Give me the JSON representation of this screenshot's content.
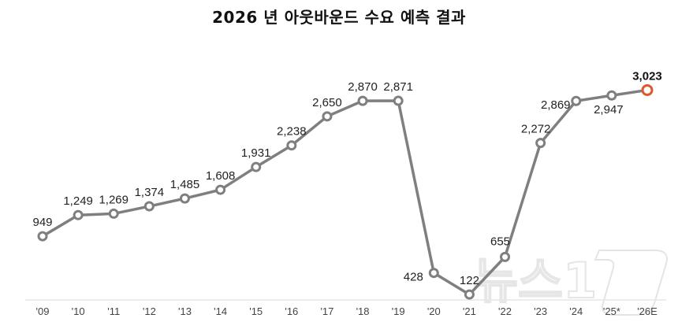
{
  "title": "2026 년 아웃바운드 수요 예측 결과",
  "watermark": "뉴스1",
  "colors": {
    "line": "#7f7f7f",
    "marker_fill": "#ffffff",
    "highlight": "#e0562e",
    "axis": "#e6e6e6",
    "text": "#222222"
  },
  "chart_data": {
    "type": "line",
    "title": "2026 년 아웃바운드 수요 예측 결과",
    "xlabel": "",
    "ylabel": "",
    "categories": [
      "'09",
      "'10",
      "'11",
      "'12",
      "'13",
      "'14",
      "'15",
      "'16",
      "'17",
      "'18",
      "'19",
      "'20",
      "'21",
      "'22",
      "'23",
      "'24",
      "'25*",
      "'26E"
    ],
    "series": [
      {
        "name": "아웃바운드 수요",
        "values": [
          949,
          1249,
          1269,
          1374,
          1485,
          1608,
          1931,
          2238,
          2650,
          2870,
          2871,
          428,
          122,
          655,
          2272,
          2869,
          2947,
          3023
        ]
      }
    ],
    "data_labels": [
      "949",
      "1,249",
      "1,269",
      "1,374",
      "1,485",
      "1,608",
      "1,931",
      "2,238",
      "2,650",
      "2,870",
      "2,871",
      "428",
      "122",
      "655",
      "2,272",
      "2,869",
      "2,947",
      "3,023"
    ],
    "highlight_index": 17,
    "grid": false,
    "y_axis_visible": false,
    "legend": "none"
  }
}
